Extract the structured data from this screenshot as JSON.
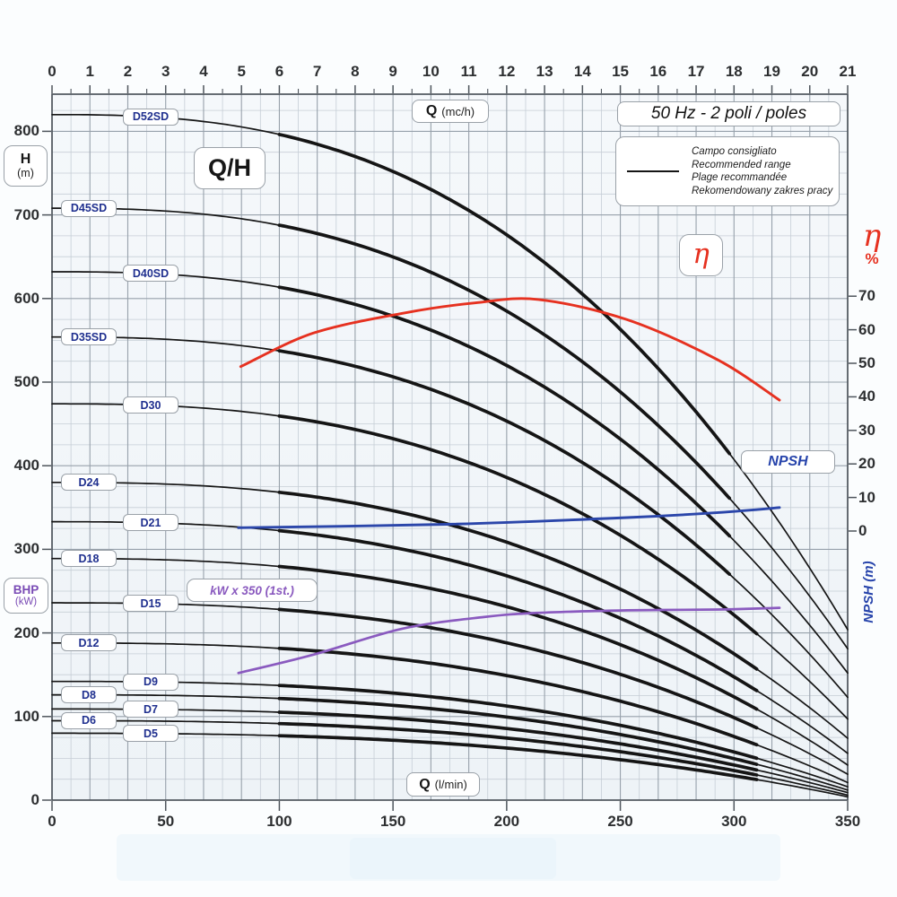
{
  "header": {
    "frequency_box": "50 Hz - 2 poli / poles"
  },
  "plot": {
    "title": "Q/H"
  },
  "legend": {
    "lines": [
      "Campo consigliato",
      "Recommended range",
      "Plage recommandée",
      "Rekomendowany zakres pracy"
    ]
  },
  "axis_labels": {
    "top_bold": "Q",
    "top_unit": "(mc/h)",
    "bottom_bold": "Q",
    "bottom_unit": "(l/min)",
    "left_bold": "H",
    "left_unit": "(m)",
    "bhp_bold": "BHP",
    "bhp_unit": "(kW)",
    "eta_symbol": "η",
    "eta_unit": "%",
    "eta_box": "η",
    "npsh_box": "NPSH",
    "npsh_axis": "NPSH (m)",
    "power_box": "kW x 350 (1st.)"
  },
  "colors": {
    "curve": "#151515",
    "efficiency": "#e63120",
    "npsh": "#2b46aa",
    "power": "#8a5abf",
    "label_text": "#20308f",
    "grid_minor": "#c6ced6",
    "grid_major": "#97a1ab",
    "axis_line": "#4e555c",
    "plot_bg_top": "#f5f8fb",
    "plot_bg_bottom": "#eef3f7"
  },
  "chart_data": {
    "type": "line",
    "title": "Q/H",
    "subtitle": "50 Hz - 2 poli / poles",
    "x_axis_top": {
      "label": "Q (mc/h)",
      "min": 0,
      "max": 21,
      "ticks": [
        0,
        1,
        2,
        3,
        4,
        5,
        6,
        7,
        8,
        9,
        10,
        11,
        12,
        13,
        14,
        15,
        16,
        17,
        18,
        19,
        20,
        21
      ]
    },
    "x_axis_bottom": {
      "label": "Q (l/min)",
      "min": 0,
      "max": 350,
      "ticks": [
        0,
        50,
        100,
        150,
        200,
        250,
        300,
        350
      ]
    },
    "y_axis_left": {
      "label": "H (m)",
      "min": 0,
      "max": 844,
      "ticks": [
        800,
        700,
        600,
        500,
        400,
        300,
        200,
        100,
        0
      ]
    },
    "y_axis_right": {
      "label": "η %",
      "min": 0,
      "max": 70,
      "ticks": [
        70,
        60,
        50,
        40,
        30,
        20,
        10,
        0
      ]
    },
    "grid": true,
    "curve_shape_exponent": 2.6,
    "recommended_range_lmin": [
      100,
      310
    ],
    "head_curves": [
      {
        "name": "D52SD",
        "h0_m": 820,
        "h_end_m": 204
      },
      {
        "name": "D45SD",
        "h0_m": 708,
        "h_end_m": 181
      },
      {
        "name": "D40SD",
        "h0_m": 632,
        "h_end_m": 152
      },
      {
        "name": "D35SD",
        "h0_m": 554,
        "h_end_m": 123
      },
      {
        "name": "D30",
        "h0_m": 474,
        "h_end_m": 97
      },
      {
        "name": "D24",
        "h0_m": 380,
        "h_end_m": 74
      },
      {
        "name": "D21",
        "h0_m": 333,
        "h_end_m": 56
      },
      {
        "name": "D18",
        "h0_m": 289,
        "h_end_m": 42
      },
      {
        "name": "D15",
        "h0_m": 236,
        "h_end_m": 31
      },
      {
        "name": "D12",
        "h0_m": 188,
        "h_end_m": 21
      },
      {
        "name": "D9",
        "h0_m": 142,
        "h_end_m": 16
      },
      {
        "name": "D8",
        "h0_m": 126,
        "h_end_m": 12
      },
      {
        "name": "D7",
        "h0_m": 109,
        "h_end_m": 9
      },
      {
        "name": "D6",
        "h0_m": 95,
        "h_end_m": 6
      },
      {
        "name": "D5",
        "h0_m": 80,
        "h_end_m": 4
      }
    ],
    "efficiency_curve_q_lmin_eta_pct": [
      [
        83,
        49
      ],
      [
        115,
        59
      ],
      [
        155,
        65
      ],
      [
        186,
        68
      ],
      [
        214,
        69
      ],
      [
        253,
        63
      ],
      [
        293,
        51
      ],
      [
        320,
        39
      ]
    ],
    "npsh_curve_q_lmin_axis_pct": [
      [
        82,
        1
      ],
      [
        174,
        2
      ],
      [
        253,
        4
      ],
      [
        293,
        5.5
      ],
      [
        320,
        7
      ]
    ],
    "power_curve_q_lmin_h_scale": [
      [
        82,
        152
      ],
      [
        115,
        174
      ],
      [
        154,
        205
      ],
      [
        190,
        219
      ],
      [
        214,
        224
      ],
      [
        253,
        227
      ],
      [
        293,
        228
      ],
      [
        320,
        230
      ]
    ]
  }
}
